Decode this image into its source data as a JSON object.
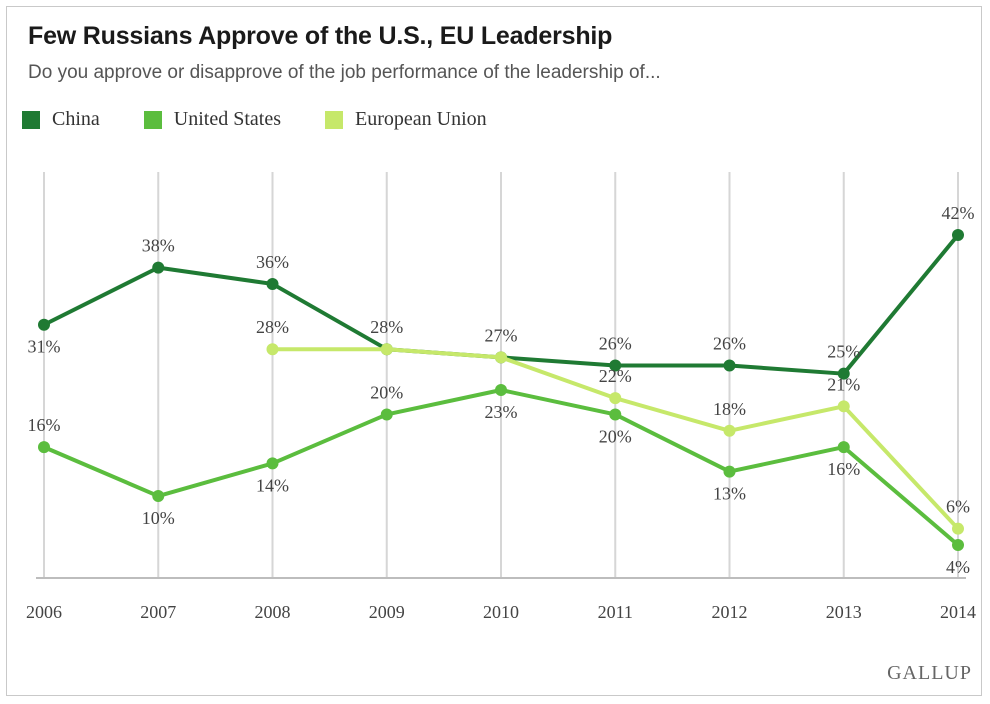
{
  "header": {
    "title": "Few Russians Approve of the U.S., EU Leadership",
    "subtitle": "Do you approve or disapprove of the job performance of the leadership of..."
  },
  "brand": "GALLUP",
  "chart_data": {
    "type": "line",
    "title": "Few Russians Approve of the U.S., EU Leadership",
    "subtitle": "Do you approve or disapprove of the job performance of the leadership of...",
    "xlabel": "",
    "ylabel": "",
    "categories": [
      "2006",
      "2007",
      "2008",
      "2009",
      "2010",
      "2011",
      "2012",
      "2013",
      "2014"
    ],
    "ylim": [
      0,
      50
    ],
    "grid": "vertical",
    "legend": "top-left",
    "series": [
      {
        "name": "China",
        "color": "#1f7a33",
        "values": [
          31,
          38,
          36,
          28,
          27,
          26,
          26,
          25,
          42
        ],
        "labels": [
          "31%",
          "38%",
          "36%",
          "28%",
          "27%",
          "26%",
          "26%",
          "25%",
          "42%"
        ]
      },
      {
        "name": "United States",
        "color": "#5bbd3e",
        "values": [
          16,
          10,
          14,
          20,
          23,
          20,
          13,
          16,
          4
        ],
        "labels": [
          "16%",
          "10%",
          "14%",
          "20%",
          "23%",
          "20%",
          "13%",
          "16%",
          "4%"
        ]
      },
      {
        "name": "European Union",
        "color": "#c6e86a",
        "values": [
          null,
          null,
          28,
          28,
          27,
          22,
          18,
          21,
          6
        ],
        "labels": [
          null,
          null,
          "28%",
          "",
          "",
          "22%",
          "18%",
          "21%",
          "6%"
        ]
      }
    ]
  }
}
